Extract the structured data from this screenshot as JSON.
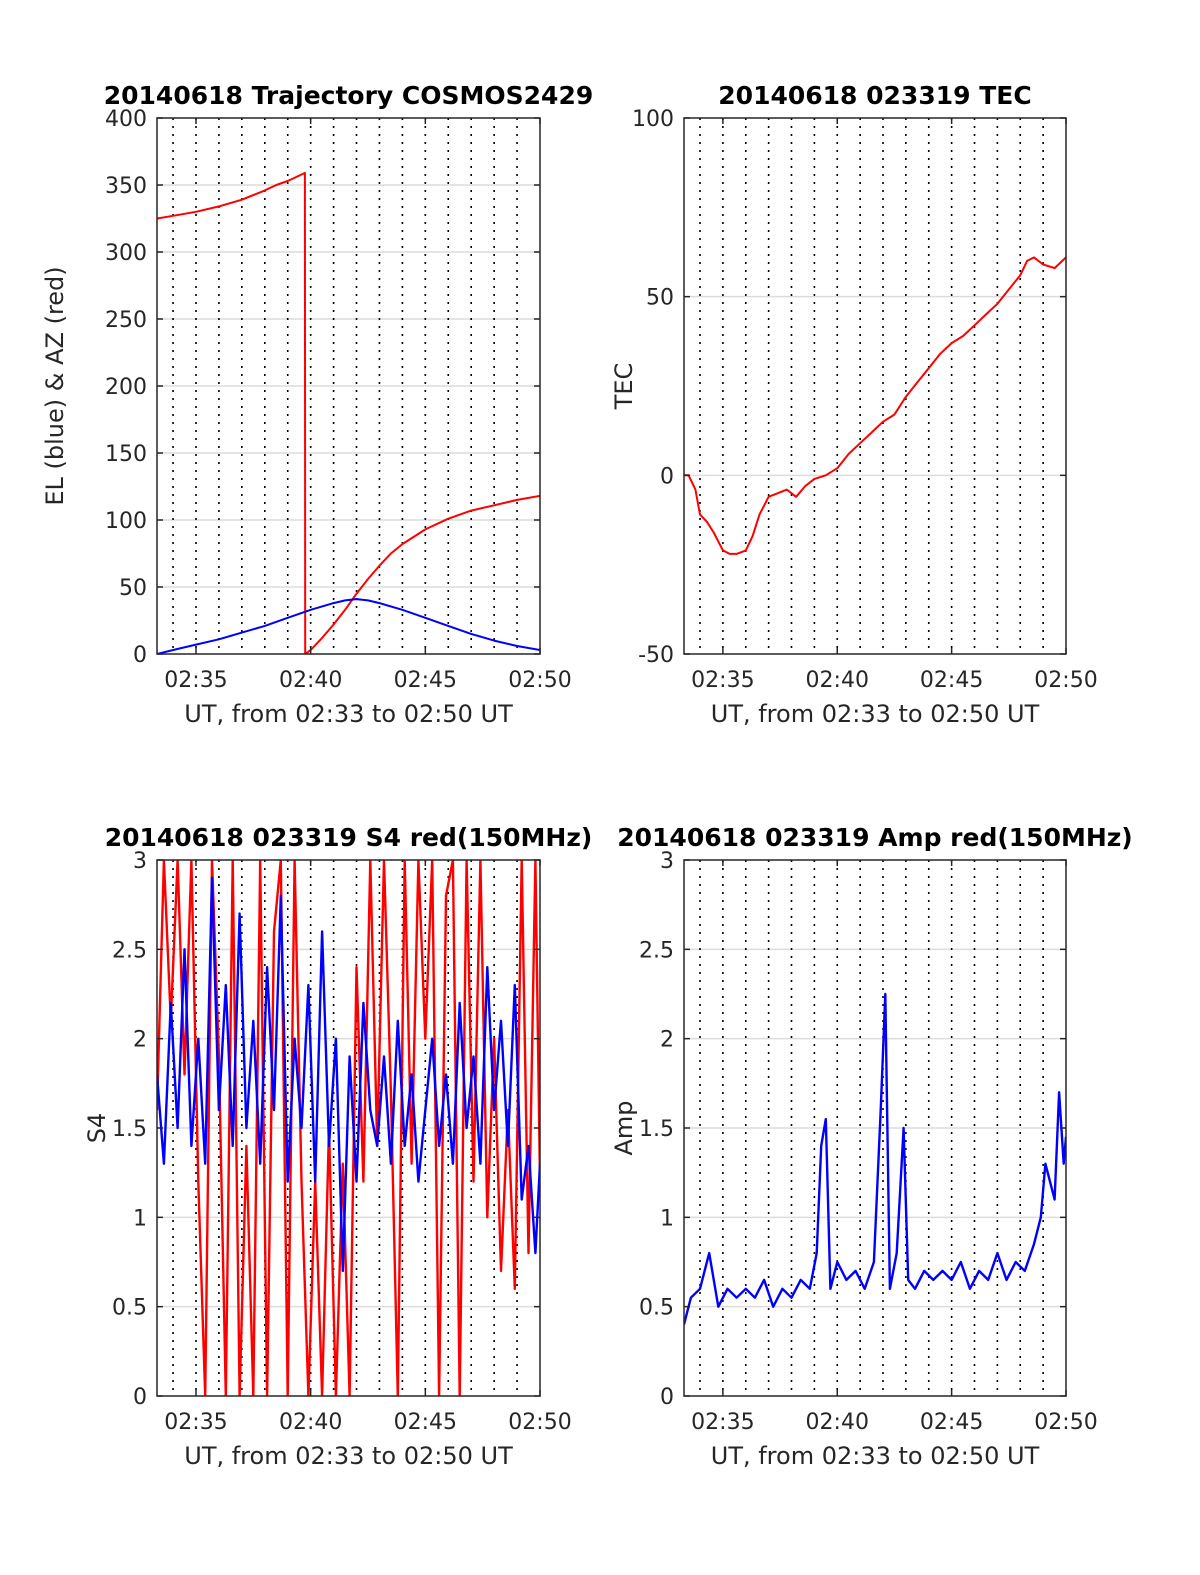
{
  "x_tick_labels": [
    "02:35",
    "02:40",
    "02:45",
    "02:50"
  ],
  "x_ticks_minutes": [
    35,
    40,
    45,
    50
  ],
  "x_range_minutes": [
    33.3,
    50
  ],
  "colors": {
    "red": "#ff0000",
    "blue": "#0000ff",
    "grid": "#dcdcdc",
    "vgrid": "#000000",
    "axis": "#262626"
  },
  "chart_data": [
    {
      "type": "line",
      "title": "20140618 Trajectory COSMOS2429",
      "xlabel": "UT, from 02:33 to 02:50 UT",
      "ylabel": "EL (blue) & AZ (red)",
      "ylim": [
        0,
        400
      ],
      "yticks": [
        0,
        50,
        100,
        150,
        200,
        250,
        300,
        350,
        400
      ],
      "ytick_labels": [
        "0",
        "50",
        "100",
        "150",
        "200",
        "250",
        "300",
        "350",
        "400"
      ],
      "grid": true,
      "series": [
        {
          "color": "#ff0000",
          "x": [
            33.3,
            34,
            35,
            36,
            37,
            38,
            38.5,
            39,
            39.5,
            39.75,
            39.76,
            40,
            40.5,
            41,
            41.5,
            42,
            42.5,
            43,
            43.5,
            44,
            45,
            46,
            47,
            48,
            49,
            50
          ],
          "y": [
            325,
            327,
            330,
            334,
            339,
            346,
            350,
            353,
            357,
            359,
            0,
            3,
            12,
            22,
            33,
            45,
            56,
            66,
            75,
            82,
            93,
            101,
            107,
            111,
            115,
            118
          ]
        },
        {
          "color": "#0000ff",
          "x": [
            33.3,
            34,
            35,
            36,
            37,
            38,
            39,
            40,
            41,
            41.5,
            42,
            42.5,
            43,
            44,
            45,
            46,
            47,
            48,
            49,
            50
          ],
          "y": [
            0,
            3,
            7,
            11,
            16,
            21,
            27,
            33,
            38,
            40,
            41,
            40,
            38,
            33,
            27,
            21,
            15,
            10,
            6,
            3
          ]
        }
      ]
    },
    {
      "type": "line",
      "title": "20140618 023319 TEC",
      "xlabel": "UT, from 02:33 to 02:50 UT",
      "ylabel": "TEC",
      "ylim": [
        -50,
        100
      ],
      "yticks": [
        -50,
        0,
        50,
        100
      ],
      "ytick_labels": [
        "-50",
        "0",
        "50",
        "100"
      ],
      "grid": true,
      "series": [
        {
          "color": "#ff0000",
          "x": [
            33.3,
            33.5,
            33.8,
            34,
            34.3,
            34.6,
            35,
            35.3,
            35.6,
            36,
            36.3,
            36.6,
            37,
            37.4,
            37.8,
            38.2,
            38.6,
            39,
            39.5,
            40,
            40.5,
            41,
            41.5,
            42,
            42.5,
            43,
            43.5,
            44,
            44.5,
            45,
            45.5,
            46,
            46.5,
            47,
            47.5,
            48,
            48.3,
            48.6,
            49,
            49.5,
            50
          ],
          "y": [
            0,
            0,
            -4,
            -11,
            -13,
            -16,
            -21,
            -22,
            -22,
            -21,
            -17,
            -11,
            -6,
            -5,
            -4,
            -6,
            -3,
            -1,
            0,
            2,
            6,
            9,
            12,
            15,
            17,
            22,
            26,
            30,
            34,
            37,
            39,
            42,
            45,
            48,
            52,
            56,
            60,
            61,
            59,
            58,
            61
          ]
        }
      ]
    },
    {
      "type": "line",
      "title": "20140618 023319 S4 red(150MHz)",
      "xlabel": "UT, from 02:33 to 02:50 UT",
      "ylabel": "S4",
      "ylim": [
        0,
        3
      ],
      "yticks": [
        0,
        0.5,
        1,
        1.5,
        2,
        2.5,
        3
      ],
      "ytick_labels": [
        "0",
        "0.5",
        "1",
        "1.5",
        "2",
        "2.5",
        "3"
      ],
      "grid": true,
      "series": [
        {
          "color": "#ff0000",
          "x": [
            33.3,
            33.6,
            33.9,
            34.2,
            34.5,
            34.8,
            35.1,
            35.4,
            35.7,
            36.0,
            36.3,
            36.6,
            36.9,
            37.2,
            37.5,
            37.8,
            38.1,
            38.4,
            38.7,
            39.0,
            39.3,
            39.6,
            39.9,
            40.2,
            40.5,
            40.8,
            41.1,
            41.4,
            41.7,
            42.0,
            42.3,
            42.6,
            42.9,
            43.2,
            43.5,
            43.8,
            44.1,
            44.4,
            44.7,
            45.0,
            45.3,
            45.6,
            45.9,
            46.2,
            46.5,
            46.8,
            47.1,
            47.4,
            47.7,
            48.0,
            48.3,
            48.6,
            48.9,
            49.2,
            49.5,
            49.8,
            50.0
          ],
          "y": [
            1.6,
            3.0,
            2.1,
            3.0,
            1.8,
            3.0,
            1.2,
            0.0,
            3.0,
            1.9,
            0.0,
            3.0,
            0.0,
            1.4,
            0.0,
            3.0,
            0.0,
            2.6,
            3.0,
            0.0,
            3.0,
            1.2,
            0.0,
            1.2,
            0.0,
            1.5,
            0.0,
            1.3,
            0.0,
            2.4,
            1.2,
            3.0,
            1.4,
            3.0,
            1.7,
            0.0,
            3.0,
            1.3,
            3.0,
            2.0,
            3.0,
            0.0,
            2.8,
            3.0,
            0.0,
            3.0,
            1.2,
            3.0,
            1.0,
            2.0,
            0.7,
            1.6,
            0.6,
            3.0,
            0.8,
            3.0,
            1.2
          ]
        },
        {
          "color": "#0000ff",
          "x": [
            33.3,
            33.6,
            33.9,
            34.2,
            34.5,
            34.8,
            35.1,
            35.4,
            35.7,
            36.0,
            36.3,
            36.6,
            36.9,
            37.2,
            37.5,
            37.8,
            38.1,
            38.4,
            38.7,
            39.0,
            39.3,
            39.6,
            39.9,
            40.2,
            40.5,
            40.8,
            41.1,
            41.4,
            41.7,
            42.0,
            42.3,
            42.6,
            42.9,
            43.2,
            43.5,
            43.8,
            44.1,
            44.4,
            44.7,
            45.0,
            45.3,
            45.6,
            45.9,
            46.2,
            46.5,
            46.8,
            47.1,
            47.4,
            47.7,
            48.0,
            48.3,
            48.6,
            48.9,
            49.2,
            49.5,
            49.8,
            50.0
          ],
          "y": [
            1.8,
            1.3,
            2.2,
            1.5,
            2.5,
            1.4,
            2.0,
            1.3,
            2.9,
            1.6,
            2.3,
            1.4,
            2.7,
            1.5,
            2.1,
            1.3,
            2.4,
            1.6,
            2.8,
            1.2,
            2.0,
            1.5,
            2.3,
            1.2,
            2.6,
            1.4,
            2.0,
            0.7,
            1.9,
            1.2,
            2.2,
            1.6,
            1.4,
            1.9,
            1.3,
            2.1,
            1.4,
            1.8,
            1.2,
            1.6,
            2.0,
            1.4,
            1.8,
            1.3,
            2.2,
            1.5,
            1.9,
            1.3,
            2.4,
            1.6,
            2.1,
            1.4,
            2.3,
            1.1,
            1.4,
            0.8,
            1.3
          ]
        }
      ]
    },
    {
      "type": "line",
      "title": "20140618 023319 Amp red(150MHz)",
      "xlabel": "UT, from 02:33 to 02:50 UT",
      "ylabel": "Amp",
      "ylim": [
        0,
        3
      ],
      "yticks": [
        0,
        0.5,
        1,
        1.5,
        2,
        2.5,
        3
      ],
      "ytick_labels": [
        "0",
        "0.5",
        "1",
        "1.5",
        "2",
        "2.5",
        "3"
      ],
      "grid": true,
      "series": [
        {
          "color": "#0000ff",
          "x": [
            33.3,
            33.6,
            34.0,
            34.4,
            34.8,
            35.2,
            35.6,
            36.0,
            36.4,
            36.8,
            37.2,
            37.6,
            38.0,
            38.4,
            38.8,
            39.1,
            39.3,
            39.5,
            39.7,
            40.0,
            40.4,
            40.8,
            41.2,
            41.6,
            41.9,
            42.1,
            42.3,
            42.6,
            42.9,
            43.1,
            43.4,
            43.8,
            44.2,
            44.6,
            45.0,
            45.4,
            45.8,
            46.2,
            46.6,
            47.0,
            47.4,
            47.8,
            48.2,
            48.6,
            48.9,
            49.1,
            49.3,
            49.5,
            49.7,
            49.9,
            50.0
          ],
          "y": [
            0.4,
            0.55,
            0.6,
            0.8,
            0.5,
            0.6,
            0.55,
            0.6,
            0.55,
            0.65,
            0.5,
            0.6,
            0.55,
            0.65,
            0.6,
            0.8,
            1.4,
            1.55,
            0.6,
            0.75,
            0.65,
            0.7,
            0.6,
            0.75,
            1.6,
            2.25,
            0.6,
            0.8,
            1.5,
            0.65,
            0.6,
            0.7,
            0.65,
            0.7,
            0.65,
            0.75,
            0.6,
            0.7,
            0.65,
            0.8,
            0.65,
            0.75,
            0.7,
            0.85,
            1.0,
            1.3,
            1.2,
            1.1,
            1.7,
            1.3,
            1.45
          ]
        }
      ]
    }
  ]
}
